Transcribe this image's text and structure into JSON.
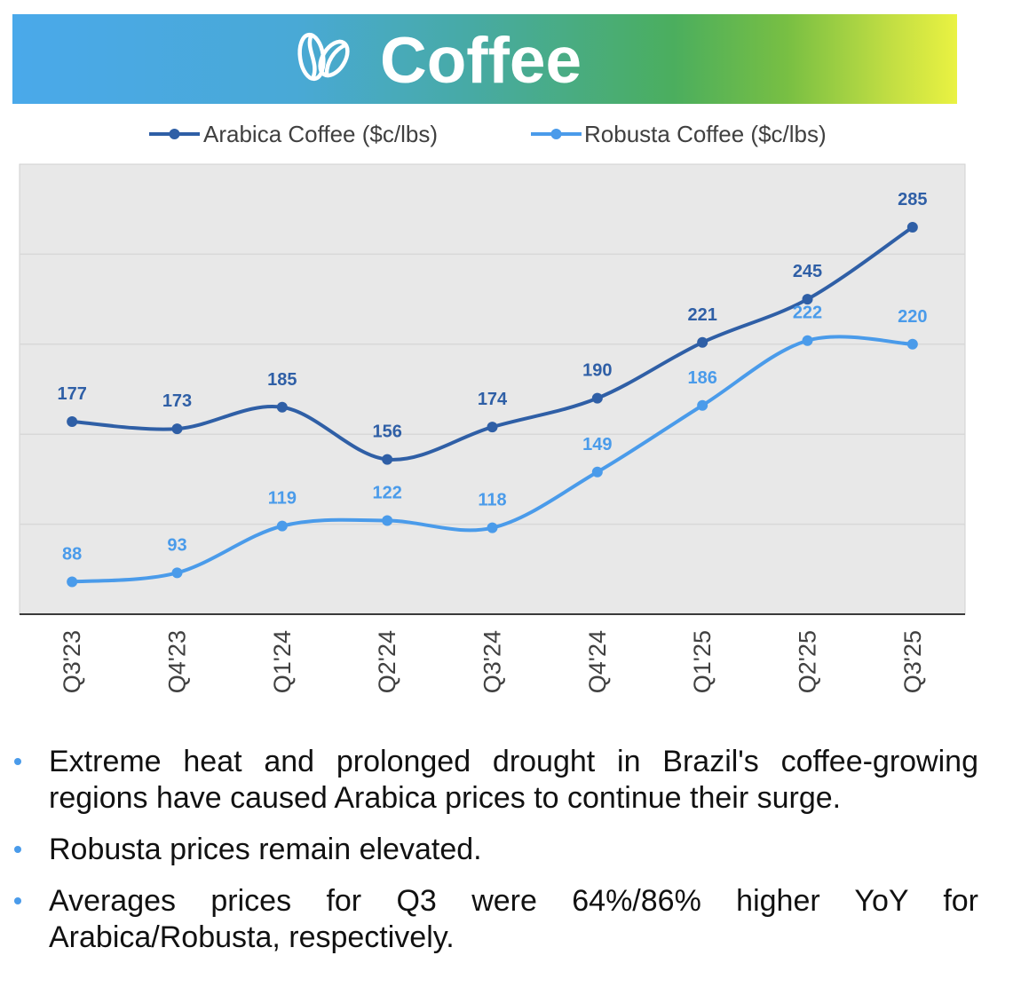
{
  "banner": {
    "title": "Coffee",
    "icon": "coffee-bean-icon"
  },
  "chart_data": {
    "type": "line",
    "categories": [
      "Q3'23",
      "Q4'23",
      "Q1'24",
      "Q2'24",
      "Q3'24",
      "Q4'24",
      "Q1'25",
      "Q2'25",
      "Q3'25"
    ],
    "series": [
      {
        "name": "Arabica Coffee ($c/lbs)",
        "values": [
          177,
          173,
          185,
          156,
          174,
          190,
          221,
          245,
          285
        ],
        "color": "#2F5FA6"
      },
      {
        "name": "Robusta Coffee ($c/lbs)",
        "values": [
          88,
          93,
          119,
          122,
          118,
          149,
          186,
          222,
          220
        ],
        "color": "#4A9BEA"
      }
    ],
    "ylim": [
      70,
      320
    ],
    "grid": true,
    "legend": "top",
    "smooth": true
  },
  "bullets": [
    "Extreme heat and prolonged drought in Brazil's coffee-growing regions have caused Arabica prices to continue their surge.",
    "Robusta prices remain elevated.",
    "Averages prices for Q3 were 64%/86% higher YoY for Arabica/Robusta, respectively."
  ],
  "colors": {
    "bullet": "#4A9BEA"
  }
}
